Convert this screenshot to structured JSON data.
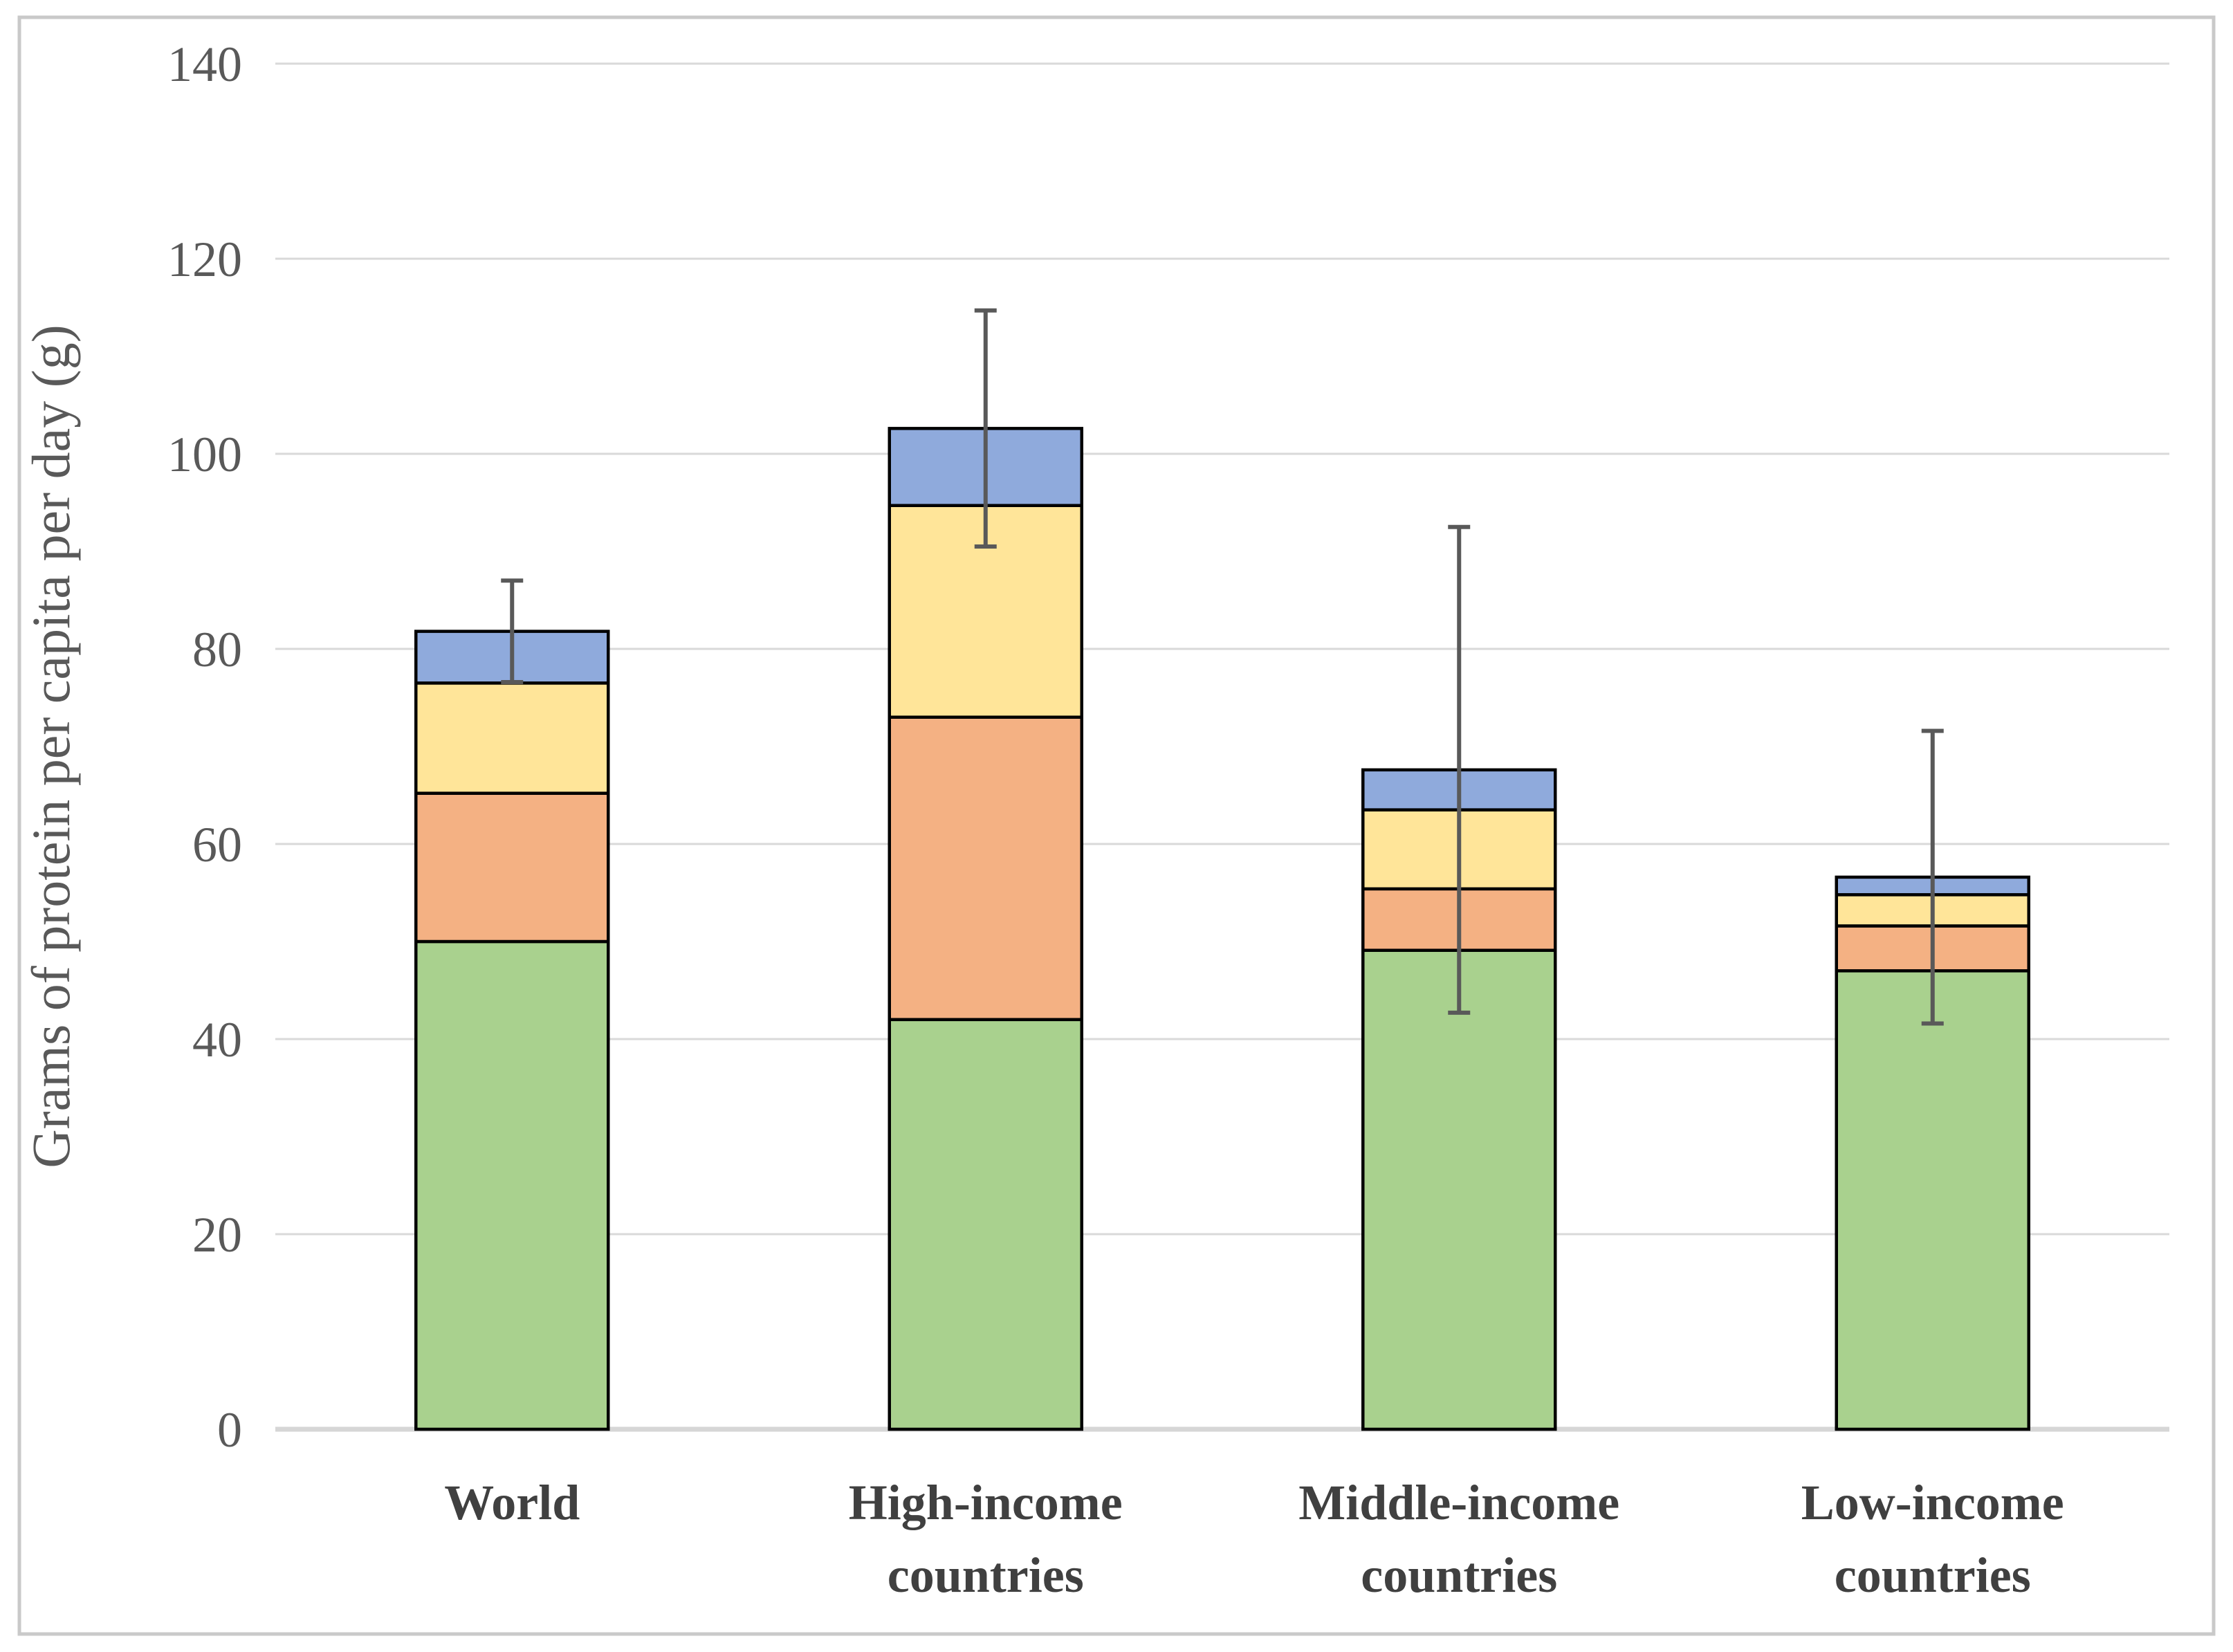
{
  "chart_data": {
    "type": "bar",
    "stacked": true,
    "title": "",
    "xlabel": "",
    "ylabel": "Grams of protein per capita per day (g)",
    "categories": [
      "World",
      "High-income countries",
      "Middle-income countries",
      "Low-income countries"
    ],
    "category_lines": [
      [
        "World"
      ],
      [
        "High-income",
        "countries"
      ],
      [
        "Middle-income",
        "countries"
      ],
      [
        "Low-income",
        "countries"
      ]
    ],
    "series": [
      {
        "name": "green-bottom-segment",
        "color": "#A9D18E",
        "values": [
          50.0,
          42.0,
          49.1,
          47.0
        ]
      },
      {
        "name": "orange-segment",
        "color": "#F4B183",
        "values": [
          15.2,
          31.0,
          6.3,
          4.6
        ]
      },
      {
        "name": "yellow-segment",
        "color": "#FFE599",
        "values": [
          11.3,
          21.7,
          8.1,
          3.2
        ]
      },
      {
        "name": "blue-top-segment",
        "color": "#8FAADC",
        "values": [
          5.3,
          7.9,
          4.1,
          1.8
        ]
      }
    ],
    "totals": [
      81.8,
      102.6,
      67.6,
      56.6
    ],
    "error_bars": {
      "plus_minus": [
        5.2,
        12.1,
        24.9,
        15.0
      ],
      "color": "#595959"
    },
    "y_axis": {
      "min": 0,
      "max": 140,
      "step": 20,
      "tick_labels": [
        "0",
        "20",
        "40",
        "60",
        "80",
        "100",
        "120",
        "140"
      ]
    },
    "grid": "horizontal",
    "legend": "none"
  },
  "styles": {
    "gridline_color": "#D9D9D9",
    "axis_line_color": "#D6D6D6",
    "bar_border_color": "#000000",
    "error_bar_color": "#595959",
    "tick_text_color": "#595959",
    "category_text_color": "#404040",
    "axis_title_color": "#595959",
    "figure_border_color": "#C9C9C9",
    "background_color": "#FFFFFF"
  }
}
